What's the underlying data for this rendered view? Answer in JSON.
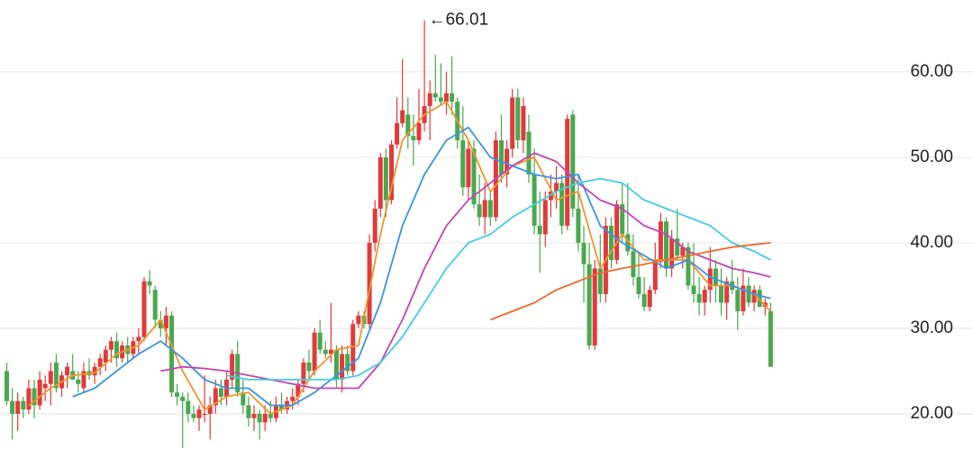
{
  "chart_data": {
    "type": "candlestick",
    "up_color": "#e03a3a",
    "down_color": "#4aa84e",
    "grid": true,
    "ylim": [
      13.9,
      68.4
    ],
    "yticks": [
      {
        "value": 20,
        "label": "20.00"
      },
      {
        "value": 30,
        "label": "30.00"
      },
      {
        "value": 40,
        "label": "40.00"
      },
      {
        "value": 50,
        "label": "50.00"
      },
      {
        "value": 60,
        "label": "60.00"
      }
    ],
    "annotation": "←66.01",
    "ohlc": [
      [
        25,
        26,
        21,
        21.5
      ],
      [
        21.5,
        23,
        17,
        20
      ],
      [
        20,
        22.5,
        18,
        21.5
      ],
      [
        21.5,
        22,
        19.5,
        20.5
      ],
      [
        20.5,
        24,
        20,
        23
      ],
      [
        23,
        24,
        19.5,
        21
      ],
      [
        21,
        25,
        20.5,
        24
      ],
      [
        23,
        24.5,
        21.5,
        23.5
      ],
      [
        23.5,
        26,
        21,
        25
      ],
      [
        26,
        27,
        22.5,
        23
      ],
      [
        23,
        25,
        22,
        24.5
      ],
      [
        24.5,
        26,
        23,
        25.5
      ],
      [
        25,
        27,
        24,
        24
      ],
      [
        24,
        25,
        22.5,
        23.5
      ],
      [
        23,
        26,
        22.5,
        25
      ],
      [
        25,
        26.5,
        24,
        24.5
      ],
      [
        24.5,
        26,
        23.5,
        25.5
      ],
      [
        25.5,
        27,
        24.5,
        26.5
      ],
      [
        26,
        28,
        25,
        27.5
      ],
      [
        27.5,
        29,
        26,
        28.5
      ],
      [
        28.5,
        29.5,
        25.5,
        26.5
      ],
      [
        26.5,
        28.5,
        26,
        28
      ],
      [
        28,
        29,
        26,
        27
      ],
      [
        27,
        29,
        26.5,
        28.5
      ],
      [
        28.5,
        30,
        27,
        29
      ],
      [
        29,
        36,
        28.5,
        35.5
      ],
      [
        35.5,
        36.8,
        34,
        35
      ],
      [
        34.5,
        35,
        30,
        31
      ],
      [
        31,
        32,
        29,
        30
      ],
      [
        30,
        32.5,
        28,
        31.5
      ],
      [
        31.5,
        32,
        22,
        22.5
      ],
      [
        22.5,
        23.5,
        21,
        22
      ],
      [
        22,
        22.5,
        16,
        21.5
      ],
      [
        21.5,
        22.5,
        19,
        20
      ],
      [
        20,
        21,
        19,
        19.5
      ],
      [
        19.5,
        21,
        18,
        20.5
      ],
      [
        20,
        24.5,
        19,
        20
      ],
      [
        20,
        22,
        17,
        21
      ],
      [
        21,
        24,
        20,
        23
      ],
      [
        23,
        24,
        21,
        22
      ],
      [
        22,
        25,
        21,
        24
      ],
      [
        24,
        27.5,
        23,
        27
      ],
      [
        27,
        28.5,
        22,
        22.5
      ],
      [
        22.5,
        24,
        20,
        21
      ],
      [
        21,
        22,
        18.5,
        19.5
      ],
      [
        19.5,
        21,
        18,
        20
      ],
      [
        20,
        20.5,
        17,
        19
      ],
      [
        19,
        21,
        18,
        20
      ],
      [
        20,
        21.5,
        19,
        19.5
      ],
      [
        19.5,
        22,
        19,
        21
      ],
      [
        21,
        22.5,
        20,
        20.5
      ],
      [
        20.5,
        22,
        20,
        21.5
      ],
      [
        21.5,
        23,
        20.5,
        22
      ],
      [
        22,
        24,
        21,
        23.5
      ],
      [
        23.5,
        26.5,
        22.5,
        26
      ],
      [
        26,
        27.5,
        24,
        25
      ],
      [
        25,
        30,
        24.5,
        29.5
      ],
      [
        29.5,
        31,
        27,
        27.5
      ],
      [
        27.5,
        28.5,
        26.5,
        27
      ],
      [
        27,
        33,
        26,
        27.5
      ],
      [
        27.5,
        28,
        23,
        24
      ],
      [
        24,
        28,
        22.5,
        27
      ],
      [
        27,
        28,
        24.5,
        25
      ],
      [
        25,
        31,
        24.5,
        30.5
      ],
      [
        30.5,
        32,
        30,
        31.5
      ],
      [
        31.5,
        32,
        30,
        30.5
      ],
      [
        30.5,
        41,
        30,
        40
      ],
      [
        40,
        45,
        39,
        44
      ],
      [
        44,
        50.5,
        43,
        50
      ],
      [
        50,
        51,
        43,
        45
      ],
      [
        45,
        52,
        44.5,
        51.5
      ],
      [
        51.5,
        57,
        51,
        54
      ],
      [
        54,
        61.5,
        53.5,
        55.5
      ],
      [
        55,
        57,
        51,
        52.5
      ],
      [
        52.5,
        55,
        49,
        52
      ],
      [
        52,
        58,
        51.5,
        54
      ],
      [
        54,
        66.01,
        53,
        56
      ],
      [
        56,
        59,
        52,
        57.5
      ],
      [
        57.5,
        62,
        56.5,
        57
      ],
      [
        57,
        61,
        56,
        56.5
      ],
      [
        56.5,
        60,
        55,
        57.5
      ],
      [
        57.5,
        61.8,
        55,
        56.5
      ],
      [
        56.5,
        57,
        51,
        52
      ],
      [
        52,
        56,
        45.5,
        46.5
      ],
      [
        46.5,
        52,
        45,
        51
      ],
      [
        51,
        52,
        44,
        44.5
      ],
      [
        44.5,
        48,
        42,
        43
      ],
      [
        43,
        47,
        41,
        45
      ],
      [
        45,
        46,
        42,
        43
      ],
      [
        43,
        53,
        42.5,
        52
      ],
      [
        52,
        55,
        47,
        48
      ],
      [
        48,
        52,
        46.5,
        51
      ],
      [
        51,
        58,
        50,
        57
      ],
      [
        57,
        58,
        51,
        52
      ],
      [
        52,
        57,
        50.5,
        56
      ],
      [
        53,
        55,
        47,
        48
      ],
      [
        48,
        51,
        41,
        42
      ],
      [
        42,
        46,
        36.5,
        41
      ],
      [
        41,
        46,
        39.5,
        45
      ],
      [
        45,
        48,
        43,
        46
      ],
      [
        46,
        49,
        44,
        47
      ],
      [
        47,
        48,
        41,
        42
      ],
      [
        42,
        55,
        41.5,
        54.5
      ],
      [
        55,
        55.5,
        43,
        44
      ],
      [
        44,
        48,
        39,
        40
      ],
      [
        40,
        42,
        33,
        37.5
      ],
      [
        37.5,
        40,
        27.5,
        28
      ],
      [
        28,
        38,
        27.5,
        37
      ],
      [
        37,
        41,
        33,
        34
      ],
      [
        34,
        43,
        33,
        42
      ],
      [
        42,
        43,
        37,
        38
      ],
      [
        38,
        45,
        37.5,
        44.5
      ],
      [
        44.5,
        47,
        40,
        41
      ],
      [
        41,
        47,
        38.5,
        39
      ],
      [
        39,
        41,
        35,
        36
      ],
      [
        36,
        39,
        33.5,
        34
      ],
      [
        34,
        36,
        32,
        32.5
      ],
      [
        32.5,
        35,
        32,
        34.5
      ],
      [
        34.5,
        40,
        34,
        38
      ],
      [
        38,
        43.5,
        37,
        42.5
      ],
      [
        42.5,
        43,
        36,
        37
      ],
      [
        37,
        41.5,
        36,
        40.5
      ],
      [
        40.5,
        44,
        38,
        38.5
      ],
      [
        38.5,
        40,
        37,
        39.5
      ],
      [
        39.5,
        40,
        34.5,
        35
      ],
      [
        35,
        40,
        33,
        34
      ],
      [
        34,
        36,
        31.5,
        33
      ],
      [
        33,
        35,
        31.5,
        34.5
      ],
      [
        34.5,
        39.5,
        33,
        37
      ],
      [
        37,
        38,
        33,
        35
      ],
      [
        35,
        37,
        31.5,
        33
      ],
      [
        33,
        36,
        31,
        35.5
      ],
      [
        35.5,
        38,
        34,
        34.5
      ],
      [
        34.5,
        36,
        29.8,
        32
      ],
      [
        32,
        37,
        31.5,
        35
      ],
      [
        35,
        36,
        32.5,
        33
      ],
      [
        33,
        35,
        32,
        34.5
      ],
      [
        34.5,
        35,
        32.5,
        32.5
      ],
      [
        32.5,
        33.5,
        31.5,
        33
      ],
      [
        32,
        33,
        25.5,
        25.5
      ]
    ],
    "x": [
      0,
      4,
      8,
      12,
      16,
      20,
      24,
      28,
      32,
      36,
      40,
      44,
      48,
      52,
      56,
      60,
      64,
      68,
      72,
      76,
      80,
      84,
      88,
      92,
      96,
      100,
      104,
      108,
      112,
      116,
      120,
      124,
      128,
      132,
      136,
      139
    ],
    "series": [
      {
        "color": "#f0952e",
        "values": [
          null,
          21,
          23,
          24.5,
          24.8,
          27,
          28,
          31,
          25,
          20.5,
          22,
          22.5,
          20,
          21,
          25,
          27.5,
          28,
          41,
          52,
          55,
          56.5,
          52,
          46,
          49,
          50,
          45,
          46,
          37,
          41,
          38,
          38,
          38,
          35,
          35,
          34,
          32
        ]
      },
      {
        "color": "#3a95e4",
        "values": [
          null,
          null,
          null,
          22,
          23,
          25,
          27,
          28.5,
          26.5,
          24,
          23,
          23,
          21,
          21,
          22.5,
          24.5,
          26.5,
          33,
          42,
          48,
          52,
          53.5,
          50,
          49,
          48,
          47.5,
          48,
          42,
          40,
          38.5,
          37,
          38,
          36,
          35,
          34,
          33.5
        ]
      },
      {
        "color": "#c444b4",
        "values": [
          null,
          null,
          null,
          null,
          null,
          null,
          null,
          25,
          25.5,
          25.3,
          25,
          24.5,
          24,
          23.5,
          23,
          23,
          23,
          26,
          31,
          37,
          42,
          45,
          47,
          49,
          50.5,
          49.5,
          47,
          45,
          44,
          42,
          41,
          39,
          38,
          37,
          36.5,
          36
        ]
      },
      {
        "color": "#44cfe0",
        "values": [
          null,
          null,
          null,
          null,
          null,
          null,
          null,
          null,
          null,
          null,
          24.5,
          24,
          24,
          24,
          24,
          24,
          24.5,
          26,
          29,
          33,
          37,
          40,
          41,
          43,
          44.5,
          46,
          47,
          47.5,
          47,
          45,
          44,
          43,
          42,
          40,
          39,
          38
        ]
      },
      {
        "color": "#f06a2c",
        "values": [
          null,
          null,
          null,
          null,
          null,
          null,
          null,
          null,
          null,
          null,
          null,
          null,
          null,
          null,
          null,
          null,
          null,
          null,
          null,
          null,
          null,
          null,
          31,
          32,
          33,
          34.5,
          35.5,
          36.5,
          37,
          37.5,
          38,
          38.5,
          39,
          39.5,
          39.8,
          40
        ]
      }
    ]
  }
}
